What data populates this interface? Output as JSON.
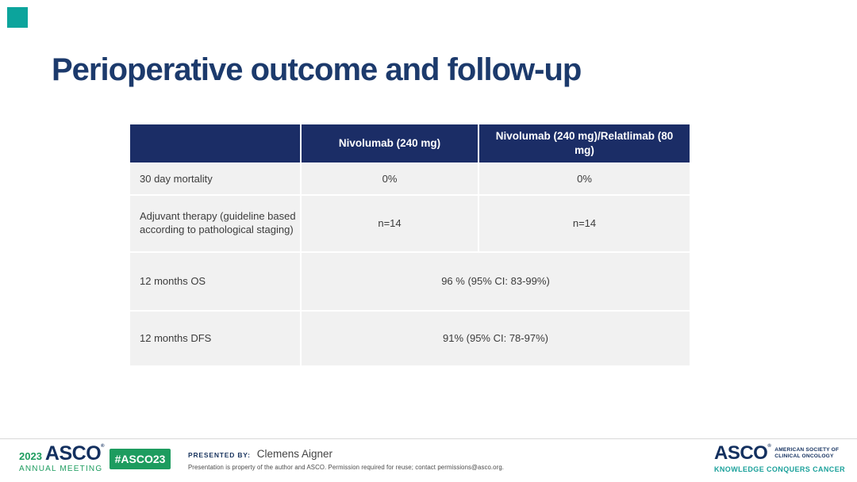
{
  "slide": {
    "title": "Perioperative outcome and follow-up"
  },
  "table": {
    "columns": [
      "",
      "Nivolumab (240 mg)",
      "Nivolumab (240 mg)/Relatlimab (80 mg)"
    ],
    "rows": [
      {
        "label": "30 day mortality",
        "values": [
          "0%",
          "0%"
        ]
      },
      {
        "label": "Adjuvant therapy (guideline based according to pathological staging)",
        "values": [
          "n=14",
          "n=14"
        ]
      },
      {
        "label": "12 months OS",
        "merged_value": "96 % (95% CI: 83-99%)"
      },
      {
        "label": "12 months DFS",
        "merged_value": "91% (95% CI: 78-97%)"
      }
    ]
  },
  "footer": {
    "meeting_logo": {
      "year": "2023",
      "org": "ASCO",
      "reg_mark": "®",
      "meeting": "ANNUAL MEETING"
    },
    "hashtag": "#ASCO23",
    "presented_by_label": "PRESENTED BY:",
    "presenter_name": "Clemens Aigner",
    "disclaimer": "Presentation is property of the author and ASCO. Permission required for reuse; contact permissions@asco.org.",
    "society_logo": {
      "org": "ASCO",
      "reg_mark": "®",
      "tagline_line1": "AMERICAN SOCIETY OF",
      "tagline_line2": "CLINICAL ONCOLOGY",
      "motto": "KNOWLEDGE CONQUERS CANCER"
    }
  },
  "colors": {
    "header_navy": "#1B2D66",
    "title_navy": "#1C3A6C",
    "footer_navy": "#13305F",
    "green": "#1D9C5F",
    "teal_motto": "#1BA19B",
    "corner_accent": "#0CA49C",
    "body_row_bg": "#F1F1F1"
  }
}
